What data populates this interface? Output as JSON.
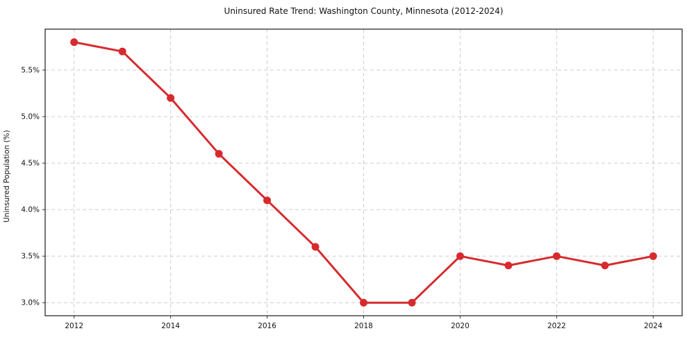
{
  "chart_data": {
    "type": "line",
    "title": "Uninsured Rate Trend: Washington County, Minnesota (2012-2024)",
    "xlabel": "",
    "ylabel": "Uninsured Population (%)",
    "x": [
      2012,
      2013,
      2014,
      2015,
      2016,
      2017,
      2018,
      2019,
      2020,
      2021,
      2022,
      2023,
      2024
    ],
    "values": [
      5.8,
      5.7,
      5.2,
      4.6,
      4.1,
      3.6,
      3.0,
      3.0,
      3.5,
      3.4,
      3.5,
      3.4,
      3.5
    ],
    "xlim": [
      2011.4,
      2024.6
    ],
    "ylim": [
      2.86,
      5.94
    ],
    "xticks": [
      2012,
      2014,
      2016,
      2018,
      2020,
      2022,
      2024
    ],
    "xticklabels": [
      "2012",
      "2014",
      "2016",
      "2018",
      "2020",
      "2022",
      "2024"
    ],
    "yticks": [
      3.0,
      3.5,
      4.0,
      4.5,
      5.0,
      5.5
    ],
    "yticklabels": [
      "3.0%",
      "3.5%",
      "4.0%",
      "4.5%",
      "5.0%",
      "5.5%"
    ],
    "grid": true,
    "grid_style": "dashed",
    "legend": false,
    "marker": "circle",
    "colors": {
      "line": "#d62b2e",
      "marker": "#d62b2e",
      "grid": "#cccccc",
      "spine": "#1a1a1a",
      "tick": "#333333",
      "text": "#111111",
      "background": "#ffffff"
    }
  }
}
